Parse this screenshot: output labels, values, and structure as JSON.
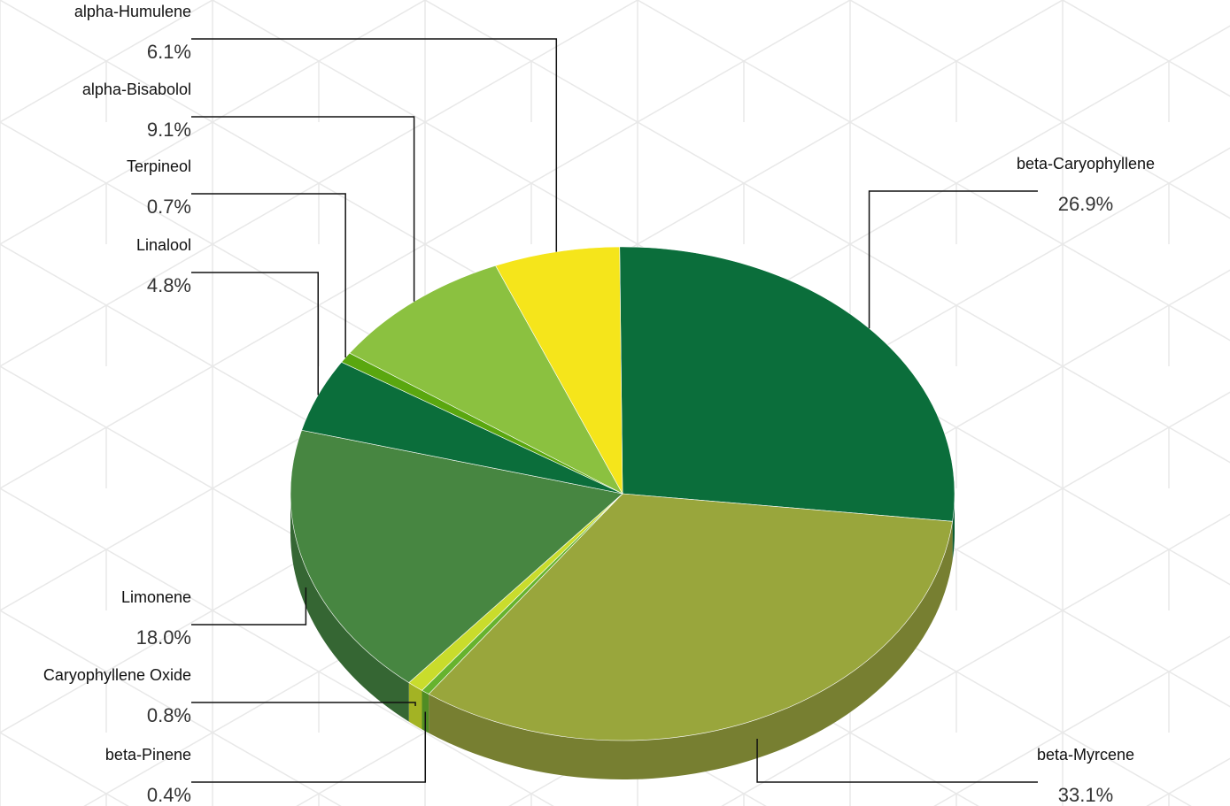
{
  "chart_data": {
    "type": "pie",
    "style": "3d",
    "title": "",
    "legend": "none",
    "slices": [
      {
        "name": "beta-Caryophyllene",
        "label": "26.9%",
        "value": 26.9,
        "color": "#0b6e3b",
        "side": "#085a30"
      },
      {
        "name": "beta-Myrcene",
        "label": "33.1%",
        "value": 33.1,
        "color": "#99a63c",
        "side": "#777f31"
      },
      {
        "name": "beta-Pinene",
        "label": "0.4%",
        "value": 0.4,
        "color": "#66b32e",
        "side": "#508c24"
      },
      {
        "name": "Caryophyllene Oxide",
        "label": "0.8%",
        "value": 0.8,
        "color": "#c9dc2c",
        "side": "#a3b324"
      },
      {
        "name": "Limonene",
        "label": "18.0%",
        "value": 18.0,
        "color": "#478641",
        "side": "#356633"
      },
      {
        "name": "Linalool",
        "label": "4.8%",
        "value": 4.8,
        "color": "#0b6e3b",
        "side": "#085a30"
      },
      {
        "name": "Terpineol",
        "label": "0.7%",
        "value": 0.7,
        "color": "#5aa70f",
        "side": "#46830c"
      },
      {
        "name": "alpha-Bisabolol",
        "label": "9.1%",
        "value": 9.1,
        "color": "#8bc140",
        "side": "#6d9832"
      },
      {
        "name": "alpha-Humulene",
        "label": "6.1%",
        "value": 6.1,
        "color": "#f5e51b",
        "side": "#c4b715"
      }
    ]
  }
}
